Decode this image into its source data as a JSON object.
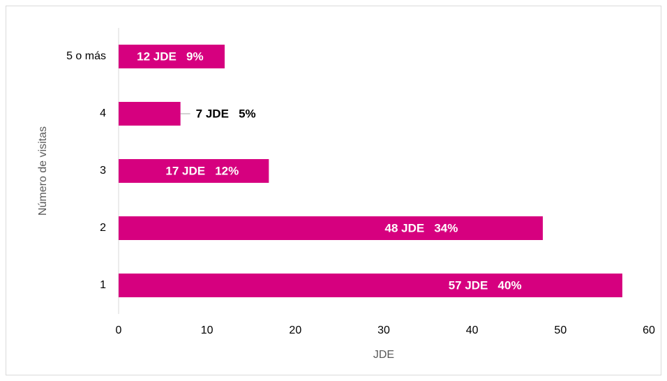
{
  "chart_data": {
    "type": "bar",
    "orientation": "horizontal",
    "categories": [
      "1",
      "2",
      "3",
      "4",
      "5 o más"
    ],
    "values": [
      57,
      48,
      17,
      7,
      12
    ],
    "value_labels": [
      "57 JDE   40%",
      "48 JDE   34%",
      "17 JDE   12%",
      "7 JDE   5%",
      "12 JDE   9%"
    ],
    "color": "#d6007f",
    "xlabel": "JDE",
    "ylabel": "Número de visitas",
    "xlim": [
      0,
      60
    ],
    "xticks": [
      0,
      10,
      20,
      30,
      40,
      50,
      60
    ],
    "grid": false
  }
}
